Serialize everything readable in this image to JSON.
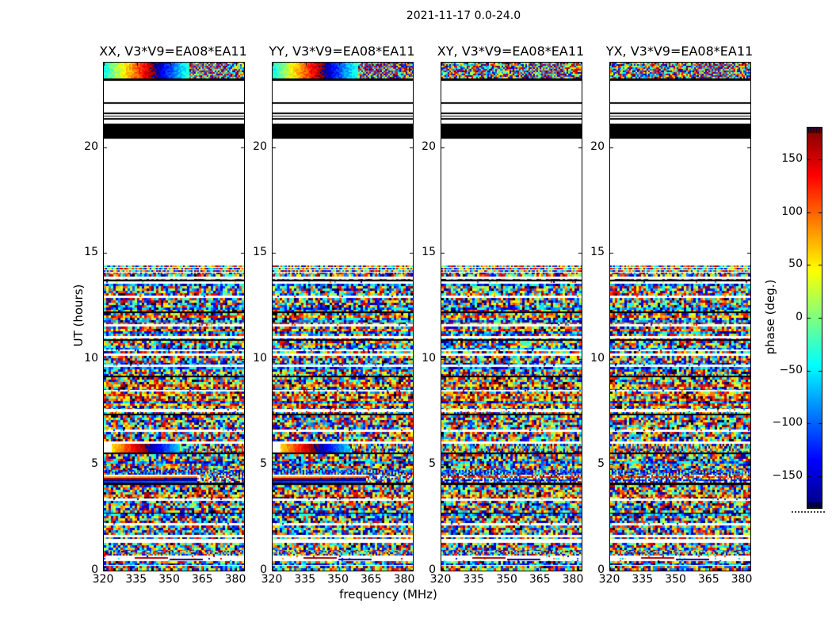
{
  "figure": {
    "title": "2021-11-17 0.0-24.0",
    "xlabel": "frequency (MHz)",
    "ylabel": "UT (hours)",
    "background": "#ffffff",
    "text_color": "#000000"
  },
  "chart_data": {
    "type": "heatmap",
    "title": "2021-11-17 0.0-24.0",
    "xlabel": "frequency (MHz)",
    "ylabel": "UT (hours)",
    "x_range_mhz": [
      320,
      383.6
    ],
    "x_ticks": [
      "320",
      "335",
      "350",
      "365",
      "380"
    ],
    "x_tick_values": [
      320,
      335,
      350,
      365,
      380
    ],
    "y_range_hours": [
      0,
      24
    ],
    "y_ticks": [
      "0",
      "5",
      "10",
      "15",
      "20"
    ],
    "y_tick_values": [
      0,
      5,
      10,
      15,
      20
    ],
    "colormap": "jet",
    "colorbar": {
      "label": "phase (deg.)",
      "range_deg": [
        -180,
        180
      ],
      "tick_labels": [
        "150",
        "100",
        "50",
        "0",
        "−50",
        "−100",
        "−150"
      ],
      "tick_values": [
        150,
        100,
        50,
        0,
        -50,
        -100,
        -150
      ]
    },
    "panels": [
      {
        "title": "XX, V3*V9=EA08*EA11",
        "pol": "XX",
        "smooth_phase_features": true
      },
      {
        "title": "YY, V3*V9=EA08*EA11",
        "pol": "YY",
        "smooth_phase_features": true
      },
      {
        "title": "XY, V3*V9=EA08*EA11",
        "pol": "XY",
        "smooth_phase_features": false
      },
      {
        "title": "YX, V3*V9=EA08*EA11",
        "pol": "YX",
        "smooth_phase_features": false
      }
    ],
    "segment_types": {
      "band_top": "scan near 24h: coherent phase gradient (XX/YY) / random phase (XY/YX), checkered RFI section on right",
      "band_sun": "scan near 5.8h: smooth wrapped phase ramp on left (XX/YY), noise otherwise",
      "band_stripes": "scan near 4.3h: smooth horizontal phase stripes (XX/YY), fine noise otherwise",
      "mesh": "fine vertical-striped noise",
      "noise": "random phase noise",
      "fine": "fine-grained random phase noise",
      "fine_striped": "fine noise with 1px white gaps",
      "sparse": "mostly flagged (white) with sparse colored samples",
      "sparse_streak": "flagged row with short red and dark-blue coherent streaks",
      "black": "flagged black band",
      "white": "no data (white)"
    },
    "time_segments": [
      [
        24.0,
        23.25,
        "band_top"
      ],
      [
        23.25,
        23.14,
        "black"
      ],
      [
        23.14,
        22.12,
        "white"
      ],
      [
        22.12,
        22.05,
        "black"
      ],
      [
        22.05,
        21.64,
        "white"
      ],
      [
        21.64,
        21.57,
        "black"
      ],
      [
        21.57,
        21.51,
        "white"
      ],
      [
        21.51,
        21.45,
        "black"
      ],
      [
        21.45,
        21.39,
        "white"
      ],
      [
        21.39,
        21.31,
        "black"
      ],
      [
        21.31,
        21.13,
        "white"
      ],
      [
        21.13,
        20.42,
        "black"
      ],
      [
        20.42,
        14.42,
        "white"
      ],
      [
        14.42,
        14.0,
        "fine_striped"
      ],
      [
        14.0,
        13.75,
        "noise"
      ],
      [
        13.75,
        13.67,
        "black"
      ],
      [
        13.67,
        13.54,
        "sparse"
      ],
      [
        13.54,
        12.98,
        "noise"
      ],
      [
        12.98,
        12.87,
        "sparse"
      ],
      [
        12.87,
        12.25,
        "noise"
      ],
      [
        12.25,
        12.17,
        "black"
      ],
      [
        12.17,
        11.65,
        "noise"
      ],
      [
        11.65,
        11.55,
        "sparse"
      ],
      [
        11.55,
        10.95,
        "noise"
      ],
      [
        10.95,
        10.87,
        "black"
      ],
      [
        10.87,
        10.45,
        "noise"
      ],
      [
        10.45,
        10.37,
        "sparse"
      ],
      [
        10.37,
        9.75,
        "noise"
      ],
      [
        9.75,
        9.64,
        "sparse"
      ],
      [
        9.64,
        9.3,
        "noise"
      ],
      [
        9.3,
        9.21,
        "fine"
      ],
      [
        9.21,
        9.14,
        "black"
      ],
      [
        9.14,
        8.55,
        "noise"
      ],
      [
        8.55,
        8.45,
        "sparse"
      ],
      [
        8.45,
        7.62,
        "noise"
      ],
      [
        7.62,
        7.5,
        "sparse"
      ],
      [
        7.5,
        7.41,
        "fine"
      ],
      [
        7.41,
        7.33,
        "black"
      ],
      [
        7.33,
        6.65,
        "noise"
      ],
      [
        6.65,
        6.55,
        "sparse"
      ],
      [
        6.55,
        6.1,
        "noise"
      ],
      [
        6.1,
        6.0,
        "white"
      ],
      [
        6.0,
        5.58,
        "band_sun"
      ],
      [
        5.58,
        5.5,
        "black"
      ],
      [
        5.5,
        4.75,
        "noise"
      ],
      [
        4.75,
        4.52,
        "mesh"
      ],
      [
        4.52,
        4.15,
        "band_stripes"
      ],
      [
        4.15,
        4.06,
        "black"
      ],
      [
        4.06,
        3.4,
        "noise"
      ],
      [
        3.4,
        3.3,
        "sparse"
      ],
      [
        3.3,
        2.75,
        "noise"
      ],
      [
        2.75,
        2.68,
        "black"
      ],
      [
        2.68,
        2.25,
        "noise"
      ],
      [
        2.25,
        2.13,
        "sparse"
      ],
      [
        2.13,
        1.48,
        "noise"
      ],
      [
        1.48,
        1.32,
        "white"
      ],
      [
        1.32,
        0.93,
        "noise"
      ],
      [
        0.93,
        0.7,
        "fine"
      ],
      [
        0.7,
        0.45,
        "sparse_streak"
      ],
      [
        0.45,
        0.27,
        "noise"
      ],
      [
        0.27,
        0.22,
        "white"
      ],
      [
        0.22,
        0.0,
        "noise"
      ]
    ],
    "jet_anchor_colors": [
      "#00007f",
      "#0000ff",
      "#00ffff",
      "#7fff7f",
      "#ffff00",
      "#ff7f00",
      "#ff0000",
      "#7f0000"
    ]
  }
}
